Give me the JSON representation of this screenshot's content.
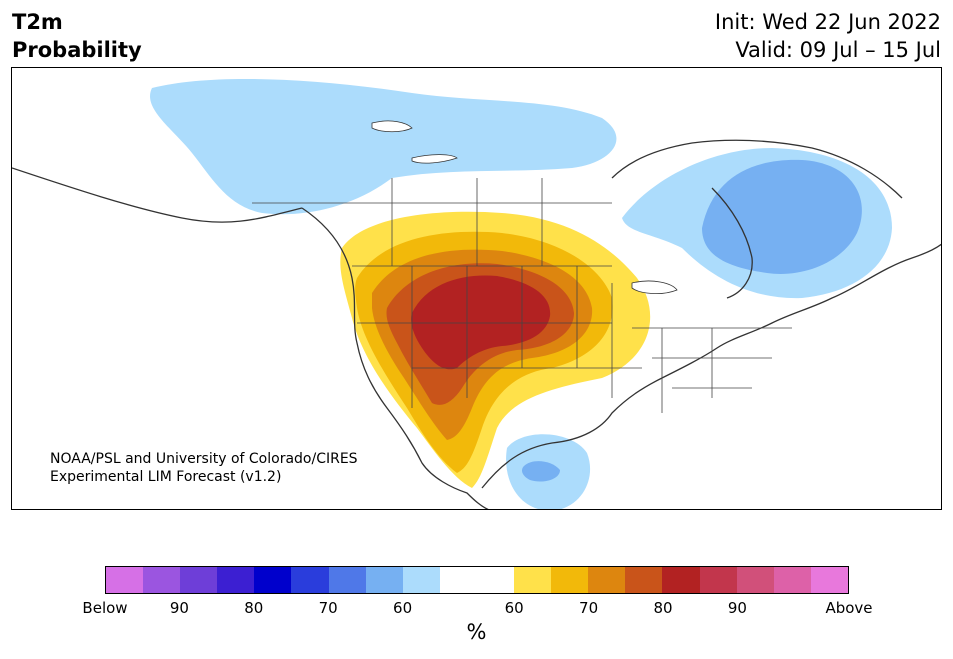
{
  "title": {
    "left_line1": "T2m",
    "left_line2": "Probability",
    "init": "Init: Wed 22 Jun 2022",
    "valid": "Valid: 09 Jul – 15 Jul"
  },
  "credit": {
    "line1": "NOAA/PSL and University of Colorado/CIRES",
    "line2": "Experimental LIM Forecast (v1.2)"
  },
  "colorbar": {
    "label": "%",
    "colors": [
      "#d670e6",
      "#9b55e0",
      "#6e3ed8",
      "#3c1fd2",
      "#0000cc",
      "#2a3ddc",
      "#4f78e8",
      "#76b0f2",
      "#acdcfc",
      "#ffffff",
      "#ffe14a",
      "#f2b90a",
      "#dd860f",
      "#c9541a",
      "#b22222",
      "#c2364c",
      "#d1507a",
      "#dd61a8",
      "#e878dc"
    ],
    "tick_labels": [
      "Below",
      "90",
      "80",
      "70",
      "60",
      "60",
      "70",
      "80",
      "90",
      "Above"
    ]
  },
  "legend_colors": {
    "warm_1": "#ffe14a",
    "warm_2": "#f2b90a",
    "warm_3": "#dd860f",
    "warm_4": "#c9541a",
    "warm_5": "#b22222",
    "cool_1": "#acdcfc",
    "cool_2": "#76b0f2"
  }
}
